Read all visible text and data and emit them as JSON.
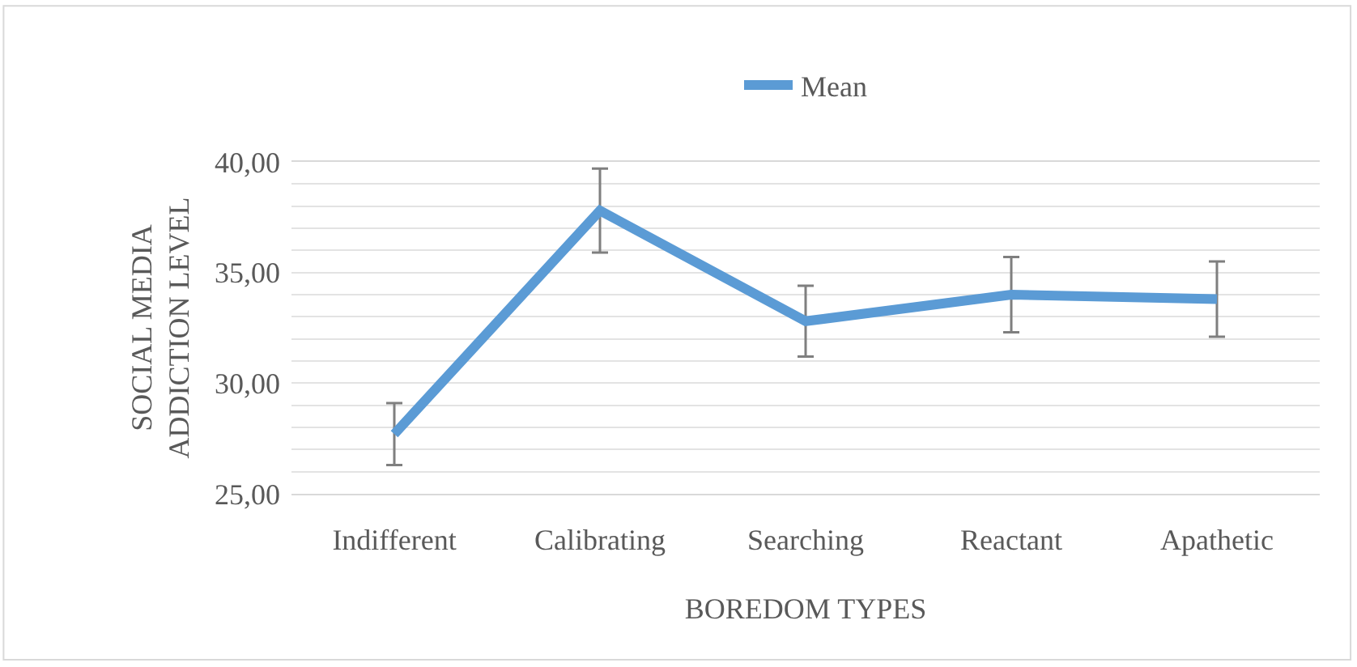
{
  "chart_data": {
    "type": "line",
    "xlabel": "BOREDOM TYPES",
    "ylabel": "SOCIAL MEDIA ADDICTION LEVEL",
    "categories": [
      "Indifferent",
      "Calibrating",
      "Searching",
      "Reactant",
      "Apathetic"
    ],
    "series": [
      {
        "name": "Mean",
        "color": "#5b9bd5",
        "values": [
          27.7,
          37.8,
          32.8,
          34.0,
          33.8
        ],
        "errors": [
          1.4,
          1.9,
          1.6,
          1.7,
          1.7
        ]
      }
    ],
    "ylim": [
      25,
      40
    ],
    "yticks": [
      {
        "value": 25,
        "label": "25,00"
      },
      {
        "value": 26,
        "label": null
      },
      {
        "value": 27,
        "label": null
      },
      {
        "value": 28,
        "label": null
      },
      {
        "value": 29,
        "label": null
      },
      {
        "value": 30,
        "label": "30,00"
      },
      {
        "value": 31,
        "label": null
      },
      {
        "value": 32,
        "label": null
      },
      {
        "value": 33,
        "label": null
      },
      {
        "value": 34,
        "label": null
      },
      {
        "value": 35,
        "label": "35,00"
      },
      {
        "value": 36,
        "label": null
      },
      {
        "value": 37,
        "label": null
      },
      {
        "value": 38,
        "label": null
      },
      {
        "value": 39,
        "label": null
      },
      {
        "value": 40,
        "label": "40,00"
      }
    ],
    "grid": "y",
    "legend": "top",
    "marker": "none",
    "line_style": "solid"
  }
}
